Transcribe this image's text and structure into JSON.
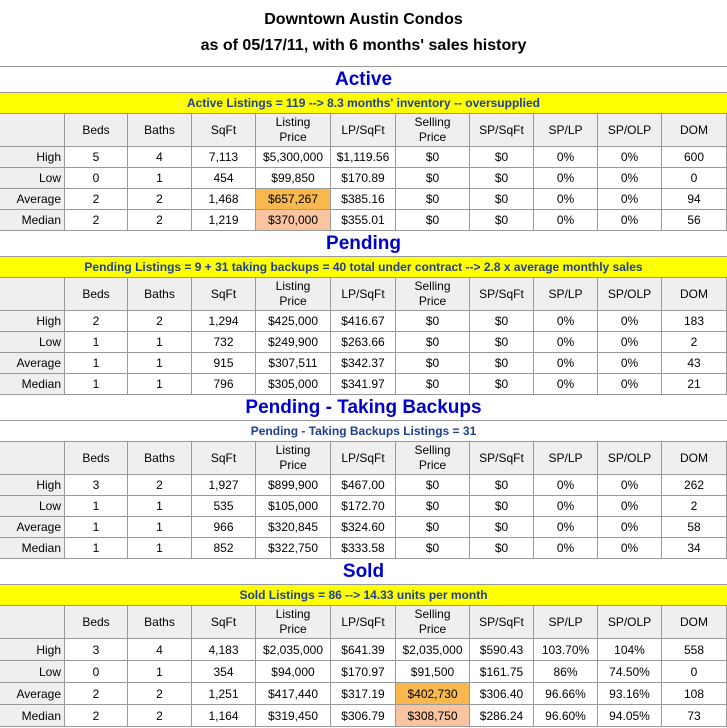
{
  "title": [
    "Downtown Austin Condos",
    "as of 05/17/11, with 6 months' sales history"
  ],
  "columns": [
    "Beds",
    "Baths",
    "SqFt",
    "Listing Price",
    "LP/SqFt",
    "Selling Price",
    "SP/SqFt",
    "SP/LP",
    "SP/OLP",
    "DOM"
  ],
  "sections": [
    {
      "name": "Active",
      "summary": "Active Listings = 119 --> 8.3 months' inventory -- oversupplied",
      "rows": [
        {
          "label": "High",
          "cells": [
            "5",
            "4",
            "7,113",
            "$5,300,000",
            "$1,119.56",
            "$0",
            "$0",
            "0%",
            "0%",
            "600"
          ]
        },
        {
          "label": "Low",
          "cells": [
            "0",
            "1",
            "454",
            "$99,850",
            "$170.89",
            "$0",
            "$0",
            "0%",
            "0%",
            "0"
          ]
        },
        {
          "label": "Average",
          "cells": [
            "2",
            "2",
            "1,468",
            "$657,267",
            "$385.16",
            "$0",
            "$0",
            "0%",
            "0%",
            "94"
          ]
        },
        {
          "label": "Median",
          "cells": [
            "2",
            "2",
            "1,219",
            "$370,000",
            "$355.01",
            "$0",
            "$0",
            "0%",
            "0%",
            "56"
          ]
        }
      ]
    },
    {
      "name": "Pending",
      "summary": "Pending Listings = 9 + 31 taking backups = 40 total under contract --> 2.8 x average monthly sales",
      "rows": [
        {
          "label": "High",
          "cells": [
            "2",
            "2",
            "1,294",
            "$425,000",
            "$416.67",
            "$0",
            "$0",
            "0%",
            "0%",
            "183"
          ]
        },
        {
          "label": "Low",
          "cells": [
            "1",
            "1",
            "732",
            "$249,900",
            "$263.66",
            "$0",
            "$0",
            "0%",
            "0%",
            "2"
          ]
        },
        {
          "label": "Average",
          "cells": [
            "1",
            "1",
            "915",
            "$307,511",
            "$342.37",
            "$0",
            "$0",
            "0%",
            "0%",
            "43"
          ]
        },
        {
          "label": "Median",
          "cells": [
            "1",
            "1",
            "796",
            "$305,000",
            "$341.97",
            "$0",
            "$0",
            "0%",
            "0%",
            "21"
          ]
        }
      ]
    },
    {
      "name": "Pending - Taking Backups",
      "summary": "Pending - Taking Backups Listings = 31",
      "rows": [
        {
          "label": "High",
          "cells": [
            "3",
            "2",
            "1,927",
            "$899,900",
            "$467.00",
            "$0",
            "$0",
            "0%",
            "0%",
            "262"
          ]
        },
        {
          "label": "Low",
          "cells": [
            "1",
            "1",
            "535",
            "$105,000",
            "$172.70",
            "$0",
            "$0",
            "0%",
            "0%",
            "2"
          ]
        },
        {
          "label": "Average",
          "cells": [
            "1",
            "1",
            "966",
            "$320,845",
            "$324.60",
            "$0",
            "$0",
            "0%",
            "0%",
            "58"
          ]
        },
        {
          "label": "Median",
          "cells": [
            "1",
            "1",
            "852",
            "$322,750",
            "$333.58",
            "$0",
            "$0",
            "0%",
            "0%",
            "34"
          ]
        }
      ]
    },
    {
      "name": "Sold",
      "summary": "Sold Listings = 86 --> 14.33 units per month",
      "rows": [
        {
          "label": "High",
          "cells": [
            "3",
            "4",
            "4,183",
            "$2,035,000",
            "$641.39",
            "$2,035,000",
            "$590.43",
            "103.70%",
            "104%",
            "558"
          ]
        },
        {
          "label": "Low",
          "cells": [
            "0",
            "1",
            "354",
            "$94,000",
            "$170.97",
            "$91,500",
            "$161.75",
            "86%",
            "74.50%",
            "0"
          ]
        },
        {
          "label": "Average",
          "cells": [
            "2",
            "2",
            "1,251",
            "$417,440",
            "$317.19",
            "$402,730",
            "$306.40",
            "96.66%",
            "93.16%",
            "108"
          ]
        },
        {
          "label": "Median",
          "cells": [
            "2",
            "2",
            "1,164",
            "$319,450",
            "$306.79",
            "$308,750",
            "$286.24",
            "96.60%",
            "94.05%",
            "73"
          ]
        }
      ]
    }
  ]
}
